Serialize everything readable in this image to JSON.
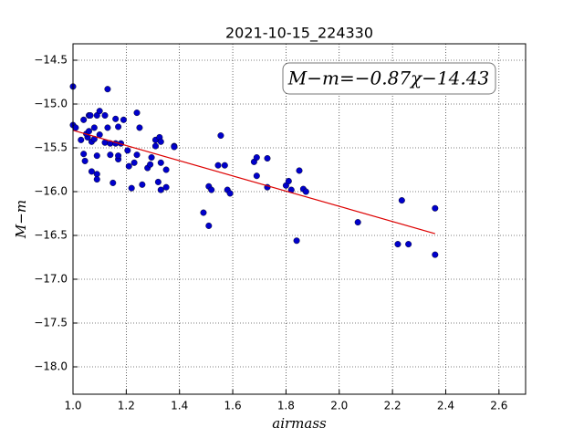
{
  "chart_data": {
    "type": "scatter",
    "title": "2021-10-15_224330",
    "annotation": "M−m=−0.87χ−14.43",
    "x_label": "airmass",
    "y_label": "M−m",
    "xlim": [
      1.0,
      2.7
    ],
    "ylim": [
      -18.3125,
      -14.3125
    ],
    "xticks": [
      {
        "value": 1.0,
        "label": "1.0"
      },
      1.2,
      1.4,
      1.6,
      1.8,
      {
        "value": 2.0,
        "label": "2.0"
      },
      2.2,
      2.4,
      2.6
    ],
    "yticks": [
      {
        "value": -14.5,
        "label": "−14.5"
      },
      {
        "value": -15.0,
        "label": "−15.0"
      },
      {
        "value": -15.5,
        "label": "−15.5"
      },
      {
        "value": -16.0,
        "label": "−16.0"
      },
      {
        "value": -16.5,
        "label": "−16.5"
      },
      {
        "value": -17.0,
        "label": "−17.0"
      },
      {
        "value": -17.5,
        "label": "−17.5"
      },
      {
        "value": -18.0,
        "label": "−18.0"
      }
    ],
    "grid": true,
    "points": {
      "color": "#0000cc",
      "x": [
        1.0,
        1.0,
        1.01,
        1.04,
        1.03,
        1.04,
        1.045,
        1.055,
        1.06,
        1.065,
        1.05,
        1.06,
        1.07,
        1.08,
        1.07,
        1.08,
        1.09,
        1.09,
        1.09,
        1.1,
        1.1,
        1.09,
        1.12,
        1.13,
        1.13,
        1.12,
        1.14,
        1.15,
        1.14,
        1.16,
        1.16,
        1.17,
        1.18,
        1.17,
        1.17,
        1.19,
        1.205,
        1.21,
        1.22,
        1.23,
        1.24,
        1.24,
        1.25,
        1.26,
        1.28,
        1.29,
        1.295,
        1.31,
        1.31,
        1.32,
        1.325,
        1.33,
        1.33,
        1.33,
        1.35,
        1.35,
        1.38,
        1.38,
        1.49,
        1.51,
        1.52,
        1.51,
        1.545,
        1.555,
        1.57,
        1.58,
        1.59,
        1.68,
        1.69,
        1.69,
        1.73,
        1.73,
        1.8,
        1.81,
        1.82,
        1.85,
        1.865,
        1.875,
        1.84,
        2.07,
        2.22,
        2.235,
        2.26,
        2.36,
        2.36
      ],
      "y": [
        -14.8,
        -15.24,
        -15.27,
        -15.18,
        -15.41,
        -15.57,
        -15.65,
        -15.38,
        -15.13,
        -15.13,
        -15.34,
        -15.31,
        -15.43,
        -15.27,
        -15.77,
        -15.4,
        -15.8,
        -15.86,
        -15.13,
        -15.35,
        -15.08,
        -15.59,
        -15.13,
        -14.83,
        -15.27,
        -15.44,
        -15.45,
        -15.9,
        -15.58,
        -15.17,
        -15.45,
        -15.26,
        -15.45,
        -15.63,
        -15.59,
        -15.18,
        -15.53,
        -15.71,
        -15.96,
        -15.67,
        -15.1,
        -15.58,
        -15.27,
        -15.92,
        -15.73,
        -15.69,
        -15.61,
        -15.41,
        -15.48,
        -15.89,
        -15.38,
        -15.43,
        -15.67,
        -15.98,
        -15.95,
        -15.75,
        -15.48,
        -15.49,
        -16.24,
        -15.94,
        -15.98,
        -16.39,
        -15.7,
        -15.36,
        -15.7,
        -15.98,
        -16.02,
        -15.66,
        -15.61,
        -15.82,
        -15.62,
        -15.95,
        -15.93,
        -15.88,
        -15.98,
        -15.76,
        -15.97,
        -16.0,
        -16.56,
        -16.35,
        -16.6,
        -16.1,
        -16.6,
        -16.19,
        -16.72
      ]
    },
    "fit": {
      "color": "#dd0000",
      "x": [
        1.0,
        2.36
      ],
      "y": [
        -15.3,
        -16.48
      ]
    }
  }
}
